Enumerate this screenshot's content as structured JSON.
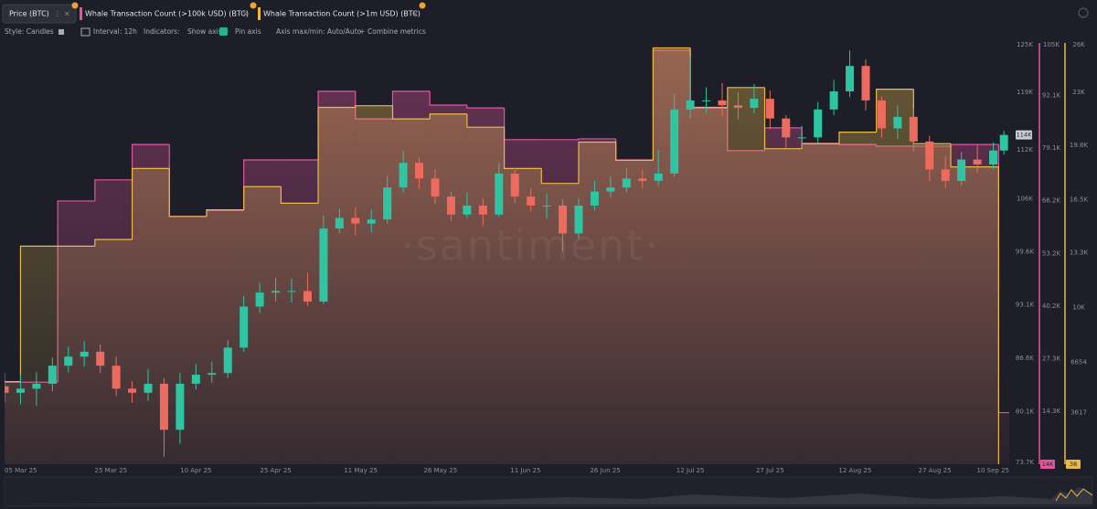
{
  "watermark": "·santiment·",
  "toolbar": {
    "style": "Style: Candles",
    "interval": "Interval: 12h",
    "indicators": "Indicators:",
    "show_axis": "Show axis",
    "pin_axis": "Pin axis",
    "axis_minmax": "Axis max/min: Auto/Auto",
    "combine": "Combine metrics"
  },
  "chart_data": {
    "type": "candlestick",
    "name": "Price (BTC)",
    "up_color": "#2fc4a2",
    "down_color": "#ec6a5e",
    "last_label": "114K",
    "xlim": [
      "2025-03-05",
      "2025-09-10"
    ],
    "xticks": [
      {
        "value": "2025-03-05",
        "label": "05 Mar 25"
      },
      {
        "value": "2025-03-25",
        "label": "25 Mar 25"
      },
      {
        "value": "2025-04-10",
        "label": "10 Apr 25"
      },
      {
        "value": "2025-04-25",
        "label": "25 Apr 25"
      },
      {
        "value": "2025-05-11",
        "label": "11 May 25"
      },
      {
        "value": "2025-05-26",
        "label": "26 May 25"
      },
      {
        "value": "2025-06-11",
        "label": "11 Jun 25"
      },
      {
        "value": "2025-06-26",
        "label": "26 Jun 25"
      },
      {
        "value": "2025-07-12",
        "label": "12 Jul 25"
      },
      {
        "value": "2025-07-27",
        "label": "27 Jul 25"
      },
      {
        "value": "2025-08-12",
        "label": "12 Aug 25"
      },
      {
        "value": "2025-08-27",
        "label": "27 Aug 25"
      },
      {
        "value": "2025-09-10",
        "label": "10 Sep 25"
      }
    ],
    "ylim": [
      73700,
      125000
    ],
    "yticks": [
      {
        "value": 73700,
        "label": "73.7K"
      },
      {
        "value": 80100,
        "label": "80.1K"
      },
      {
        "value": 86600,
        "label": "86.6K"
      },
      {
        "value": 93100,
        "label": "93.1K"
      },
      {
        "value": 99600,
        "label": "99.6K"
      },
      {
        "value": 106000,
        "label": "106K"
      },
      {
        "value": 112000,
        "label": "112K"
      },
      {
        "value": 119000,
        "label": "119K"
      },
      {
        "value": 125000,
        "label": "125K"
      }
    ],
    "y2lim": [
      1300,
      105000
    ],
    "y2ticks": [
      {
        "value": 14300,
        "label": "14.3K"
      },
      {
        "value": 27300,
        "label": "27.3K"
      },
      {
        "value": 40200,
        "label": "40.2K"
      },
      {
        "value": 53200,
        "label": "53.2K"
      },
      {
        "value": 66200,
        "label": "66.2K"
      },
      {
        "value": 79100,
        "label": "79.1K"
      },
      {
        "value": 92100,
        "label": "92.1K"
      },
      {
        "value": 105000,
        "label": "105K"
      }
    ],
    "y3lim": [
      500,
      26000
    ],
    "y3ticks": [
      3617,
      6654,
      {
        "value": 10000,
        "label": "10K"
      },
      {
        "value": 13300,
        "label": "13.3K"
      },
      {
        "value": 16500,
        "label": "16.5K"
      },
      {
        "value": 19800,
        "label": "19.8K"
      },
      {
        "value": 23000,
        "label": "23K"
      },
      {
        "value": 26000,
        "label": "26K"
      }
    ],
    "x": [
      "2025-03-05",
      "2025-03-08",
      "2025-03-11",
      "2025-03-14",
      "2025-03-17",
      "2025-03-20",
      "2025-03-23",
      "2025-03-26",
      "2025-03-29",
      "2025-04-01",
      "2025-04-04",
      "2025-04-07",
      "2025-04-10",
      "2025-04-13",
      "2025-04-16",
      "2025-04-19",
      "2025-04-22",
      "2025-04-25",
      "2025-04-28",
      "2025-05-01",
      "2025-05-04",
      "2025-05-07",
      "2025-05-10",
      "2025-05-13",
      "2025-05-16",
      "2025-05-19",
      "2025-05-22",
      "2025-05-25",
      "2025-05-28",
      "2025-05-31",
      "2025-06-03",
      "2025-06-06",
      "2025-06-09",
      "2025-06-12",
      "2025-06-15",
      "2025-06-18",
      "2025-06-21",
      "2025-06-24",
      "2025-06-27",
      "2025-06-30",
      "2025-07-03",
      "2025-07-06",
      "2025-07-09",
      "2025-07-12",
      "2025-07-15",
      "2025-07-18",
      "2025-07-21",
      "2025-07-24",
      "2025-07-27",
      "2025-07-30",
      "2025-08-02",
      "2025-08-05",
      "2025-08-08",
      "2025-08-11",
      "2025-08-14",
      "2025-08-17",
      "2025-08-20",
      "2025-08-23",
      "2025-08-26",
      "2025-08-29",
      "2025-09-01",
      "2025-09-04",
      "2025-09-07",
      "2025-09-09"
    ],
    "open": [
      83200,
      82400,
      82900,
      83500,
      85700,
      86800,
      87400,
      85700,
      82900,
      82400,
      83500,
      77900,
      83500,
      84600,
      84800,
      87900,
      92900,
      94600,
      94800,
      94800,
      93500,
      102400,
      103700,
      103000,
      103500,
      107400,
      110400,
      108500,
      106300,
      104100,
      105200,
      104100,
      109100,
      106300,
      105200,
      105200,
      101800,
      105200,
      106900,
      107400,
      108500,
      108200,
      109100,
      116900,
      118000,
      118000,
      117400,
      117100,
      118200,
      115800,
      113500,
      113500,
      116900,
      119100,
      122200,
      118000,
      114600,
      116000,
      113000,
      109600,
      108200,
      110800,
      110200,
      111900
    ],
    "high": [
      84800,
      84600,
      84900,
      86700,
      88000,
      88700,
      88300,
      86800,
      83800,
      85300,
      84200,
      84800,
      85900,
      86200,
      88800,
      94200,
      95800,
      96400,
      96300,
      97000,
      104000,
      104800,
      105000,
      104700,
      108800,
      111900,
      111000,
      109600,
      106900,
      106800,
      106100,
      110400,
      109800,
      107300,
      106700,
      106000,
      106100,
      108200,
      108800,
      109700,
      109500,
      112000,
      118800,
      123300,
      119600,
      120100,
      119000,
      120000,
      119200,
      116200,
      114900,
      117800,
      120500,
      124100,
      123000,
      118500,
      117400,
      117000,
      113700,
      111200,
      111700,
      112500,
      112900,
      114300
    ],
    "low": [
      81300,
      81000,
      80800,
      82600,
      84900,
      85600,
      84800,
      82000,
      81200,
      81400,
      74600,
      76200,
      82800,
      83600,
      84200,
      87400,
      92100,
      93500,
      93400,
      93000,
      93200,
      101800,
      101600,
      101900,
      103000,
      106800,
      107200,
      105400,
      103300,
      103700,
      102700,
      103800,
      105500,
      104500,
      103600,
      99600,
      101100,
      104600,
      106200,
      106800,
      107300,
      107600,
      108700,
      115800,
      116500,
      116100,
      115700,
      116400,
      114500,
      112000,
      112300,
      112800,
      116200,
      118400,
      116800,
      113500,
      113300,
      111800,
      108200,
      107300,
      107600,
      109200,
      109600,
      111400
    ],
    "close": [
      82400,
      82900,
      83500,
      85700,
      86800,
      87400,
      85700,
      82900,
      82400,
      83500,
      77900,
      83500,
      84600,
      84800,
      87900,
      92900,
      94600,
      94800,
      94800,
      93500,
      102400,
      103700,
      103000,
      103500,
      107400,
      110400,
      108500,
      106300,
      104100,
      105200,
      104100,
      109100,
      106300,
      105200,
      105200,
      101800,
      105200,
      106900,
      107400,
      108500,
      108200,
      109100,
      116900,
      118000,
      118000,
      117400,
      117100,
      118200,
      115800,
      113500,
      113500,
      116900,
      119100,
      122200,
      118000,
      114600,
      116000,
      113000,
      109600,
      108200,
      110800,
      110200,
      111900,
      113800
    ],
    "series": [
      {
        "name": "Whale Transaction Count (>100k USD) (BTC)",
        "type": "step-area",
        "color": "#e2559f",
        "axis": "y2",
        "last_label": "14K",
        "x": [
          "2025-03-05",
          "2025-03-08",
          "2025-03-15",
          "2025-03-22",
          "2025-03-29",
          "2025-04-05",
          "2025-04-12",
          "2025-04-19",
          "2025-04-26",
          "2025-05-03",
          "2025-05-10",
          "2025-05-17",
          "2025-05-24",
          "2025-05-31",
          "2025-06-07",
          "2025-06-14",
          "2025-06-21",
          "2025-06-28",
          "2025-07-05",
          "2025-07-12",
          "2025-07-19",
          "2025-07-26",
          "2025-08-02",
          "2025-08-09",
          "2025-08-16",
          "2025-08-23",
          "2025-08-30",
          "2025-09-08"
        ],
        "values": [
          21500,
          21500,
          66100,
          71300,
          80000,
          62300,
          63800,
          76200,
          76200,
          93100,
          86300,
          93100,
          89700,
          89000,
          81200,
          81200,
          81400,
          76200,
          103200,
          89000,
          78500,
          84100,
          80300,
          80000,
          79600,
          79600,
          80000,
          14000
        ]
      },
      {
        "name": "Whale Transaction Count (>1m USD) (BTC)",
        "type": "step-area",
        "color": "#e8ba4c",
        "axis": "y3",
        "last_label": "38",
        "x": [
          "2025-03-05",
          "2025-03-08",
          "2025-03-15",
          "2025-03-22",
          "2025-03-29",
          "2025-04-05",
          "2025-04-12",
          "2025-04-19",
          "2025-04-26",
          "2025-05-03",
          "2025-05-10",
          "2025-05-17",
          "2025-05-24",
          "2025-05-31",
          "2025-06-07",
          "2025-06-14",
          "2025-06-21",
          "2025-06-28",
          "2025-07-05",
          "2025-07-12",
          "2025-07-19",
          "2025-07-26",
          "2025-08-02",
          "2025-08-09",
          "2025-08-16",
          "2025-08-23",
          "2025-08-30",
          "2025-09-08"
        ],
        "values": [
          5500,
          13700,
          13700,
          14100,
          18400,
          15500,
          15900,
          17300,
          16300,
          22100,
          22200,
          21400,
          21700,
          20900,
          18400,
          17500,
          20000,
          18900,
          25700,
          22100,
          23300,
          19600,
          19900,
          20600,
          23200,
          19900,
          18500,
          38
        ]
      }
    ]
  }
}
